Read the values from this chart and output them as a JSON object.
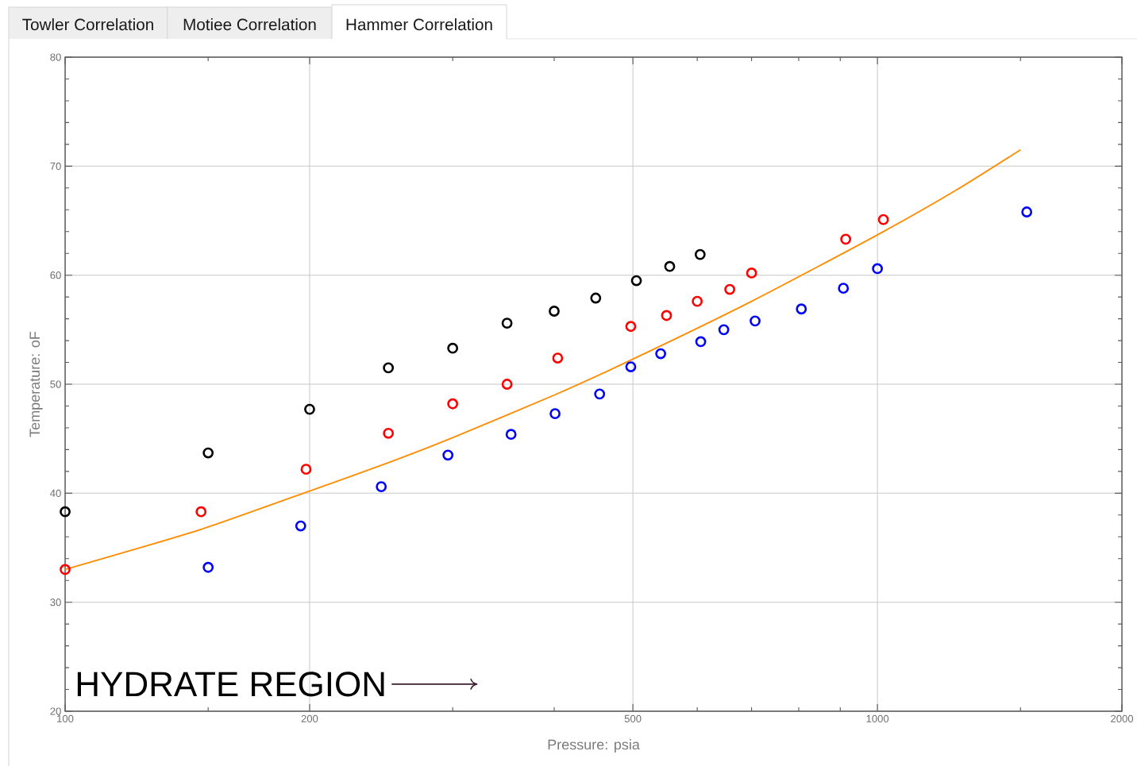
{
  "chart_data": {
    "type": "scatter",
    "xlabel": "Pressure:  psia",
    "ylabel": "Temperature:  oF",
    "annotations": [
      "Towler Correlation",
      "Motiee Correlation",
      "Hammer Correlation",
      "HYDRATE REGION"
    ],
    "log": "x",
    "grid": true,
    "marker": "circle",
    "xlim": [
      100,
      2000
    ],
    "ylim": [
      20,
      80
    ],
    "xticks": [
      100,
      {
        "value": 150,
        "label": null
      },
      200,
      {
        "value": 300,
        "label": null
      },
      {
        "value": 400,
        "label": null
      },
      500,
      {
        "value": 600,
        "label": null
      },
      {
        "value": 700,
        "label": null
      },
      {
        "value": 800,
        "label": null
      },
      {
        "value": 900,
        "label": null
      },
      1000,
      {
        "value": 1500,
        "label": null
      },
      2000
    ],
    "yticks": [
      20,
      {
        "value": 22,
        "label": null
      },
      {
        "value": 24,
        "label": null
      },
      {
        "value": 26,
        "label": null
      },
      {
        "value": 28,
        "label": null
      },
      30,
      {
        "value": 32,
        "label": null
      },
      {
        "value": 34,
        "label": null
      },
      {
        "value": 36,
        "label": null
      },
      {
        "value": 38,
        "label": null
      },
      40,
      {
        "value": 42,
        "label": null
      },
      {
        "value": 44,
        "label": null
      },
      {
        "value": 46,
        "label": null
      },
      {
        "value": 48,
        "label": null
      },
      50,
      {
        "value": 52,
        "label": null
      },
      {
        "value": 54,
        "label": null
      },
      {
        "value": 56,
        "label": null
      },
      {
        "value": 58,
        "label": null
      },
      60,
      {
        "value": 62,
        "label": null
      },
      {
        "value": 64,
        "label": null
      },
      {
        "value": 66,
        "label": null
      },
      {
        "value": 68,
        "label": null
      },
      70,
      {
        "value": 72,
        "label": null
      },
      {
        "value": 74,
        "label": null
      },
      {
        "value": 76,
        "label": null
      },
      {
        "value": 78,
        "label": null
      },
      80
    ],
    "series": [
      {
        "type": "line",
        "marker": "none",
        "color": "#ff8c00",
        "x": [
          100,
          125,
          150,
          200,
          250,
          300,
          400,
          500,
          700,
          1000,
          1250,
          1500
        ],
        "values": [
          33.0,
          35.1,
          36.9,
          40.2,
          42.8,
          45.1,
          49.0,
          52.3,
          57.6,
          63.7,
          67.8,
          71.5
        ]
      },
      {
        "color": "#000000",
        "x": [
          100,
          150,
          200,
          250,
          300,
          350,
          400,
          450,
          505,
          555,
          605
        ],
        "values": [
          38.3,
          43.7,
          47.7,
          51.5,
          53.3,
          55.6,
          56.7,
          57.9,
          59.5,
          60.8,
          61.9
        ]
      },
      {
        "color": "#ff0000",
        "x": [
          100,
          147,
          198,
          250,
          300,
          350,
          404,
          497,
          550,
          600,
          658,
          700,
          914,
          1017
        ],
        "values": [
          33.0,
          38.3,
          42.2,
          45.5,
          48.2,
          50.0,
          52.4,
          55.3,
          56.3,
          57.6,
          58.7,
          60.2,
          63.3,
          65.1
        ]
      },
      {
        "color": "#0000ff",
        "x": [
          150,
          195,
          245,
          296,
          354,
          401,
          455,
          497,
          541,
          606,
          647,
          707,
          806,
          908,
          1000,
          1527
        ],
        "values": [
          33.2,
          37.0,
          40.6,
          43.5,
          45.4,
          47.3,
          49.1,
          51.6,
          52.8,
          53.9,
          55.0,
          55.8,
          56.9,
          58.8,
          60.6,
          65.8
        ]
      }
    ]
  }
}
